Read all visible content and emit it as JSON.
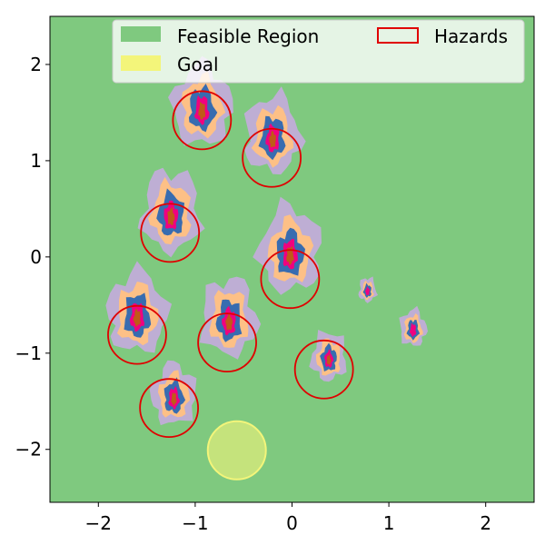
{
  "chart_data": {
    "type": "contour",
    "xlim": [
      -2.5,
      2.5
    ],
    "ylim": [
      -2.55,
      2.5
    ],
    "x_ticks": [
      -2,
      -1,
      0,
      1,
      2
    ],
    "y_ticks": [
      -2,
      -1,
      0,
      1,
      2
    ],
    "x_tick_labels": [
      "−2",
      "−1",
      "0",
      "1",
      "2"
    ],
    "y_tick_labels": [
      "−2",
      "−1",
      "0",
      "1",
      "2"
    ],
    "grid": false,
    "legend": {
      "placement": "top-right",
      "entries": [
        {
          "label": "Feasible Region",
          "color": "#7fc97f",
          "kind": "filled"
        },
        {
          "label": "Goal",
          "color": "#f3f57a",
          "kind": "filled"
        },
        {
          "label": "Hazards",
          "color": "#e00000",
          "kind": "outline"
        }
      ]
    },
    "background_color": "#7fc97f",
    "contour_colors": [
      "#beaed4",
      "#fdc086",
      "#386cb0",
      "#f0027f",
      "#bf5b17"
    ],
    "hazards": [
      {
        "x": -0.93,
        "y": 1.42,
        "r": 0.3
      },
      {
        "x": -0.21,
        "y": 1.03,
        "r": 0.3
      },
      {
        "x": -1.26,
        "y": 0.25,
        "r": 0.3
      },
      {
        "x": -0.02,
        "y": -0.23,
        "r": 0.3
      },
      {
        "x": -1.6,
        "y": -0.81,
        "r": 0.3
      },
      {
        "x": -0.67,
        "y": -0.89,
        "r": 0.3
      },
      {
        "x": 0.33,
        "y": -1.17,
        "r": 0.3
      },
      {
        "x": -1.27,
        "y": -1.57,
        "r": 0.3
      }
    ],
    "peaks": [
      {
        "x": -0.93,
        "y": 1.55,
        "s": 1.0
      },
      {
        "x": -0.2,
        "y": 1.25,
        "s": 0.95
      },
      {
        "x": -1.25,
        "y": 0.45,
        "s": 1.0
      },
      {
        "x": -0.02,
        "y": 0.05,
        "s": 1.05
      },
      {
        "x": -1.6,
        "y": -0.6,
        "s": 1.0
      },
      {
        "x": -0.65,
        "y": -0.65,
        "s": 0.95
      },
      {
        "x": 0.38,
        "y": -1.05,
        "s": 0.6
      },
      {
        "x": -1.22,
        "y": -1.45,
        "s": 0.75
      },
      {
        "x": 1.25,
        "y": -0.75,
        "s": 0.45
      },
      {
        "x": 0.78,
        "y": -0.35,
        "s": 0.3
      }
    ],
    "goal": {
      "x": -0.57,
      "y": -2.01,
      "r": 0.3,
      "color": "#f3f57a"
    }
  }
}
